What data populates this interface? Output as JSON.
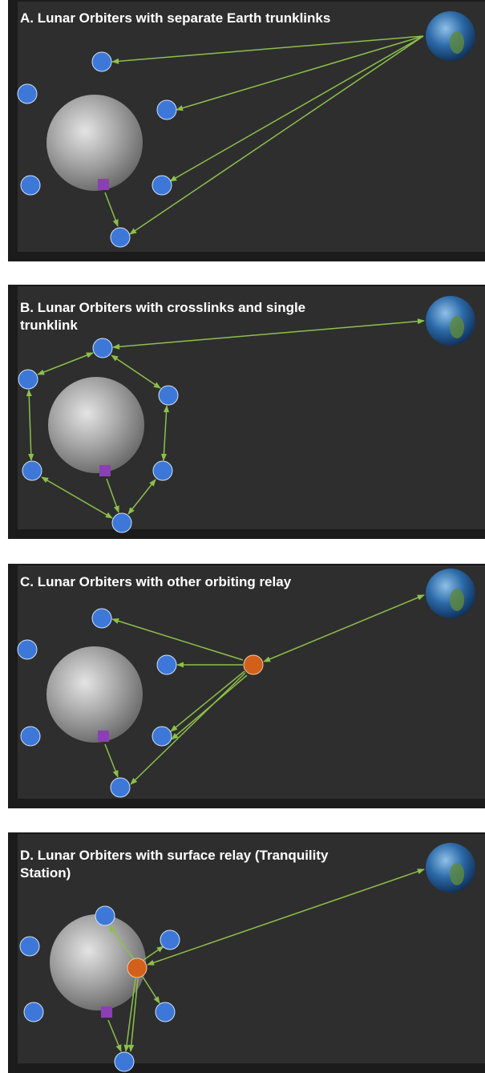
{
  "panels": [
    {
      "title": [
        "A. Lunar Orbiters with separate Earth trunklinks"
      ]
    },
    {
      "title": [
        "B. Lunar Orbiters with crosslinks and single",
        "trunklink"
      ]
    },
    {
      "title": [
        "C. Lunar Orbiters with other orbiting relay"
      ]
    },
    {
      "title": [
        "D. Lunar Orbiters with surface relay (Tranquility",
        "Station)"
      ]
    }
  ]
}
